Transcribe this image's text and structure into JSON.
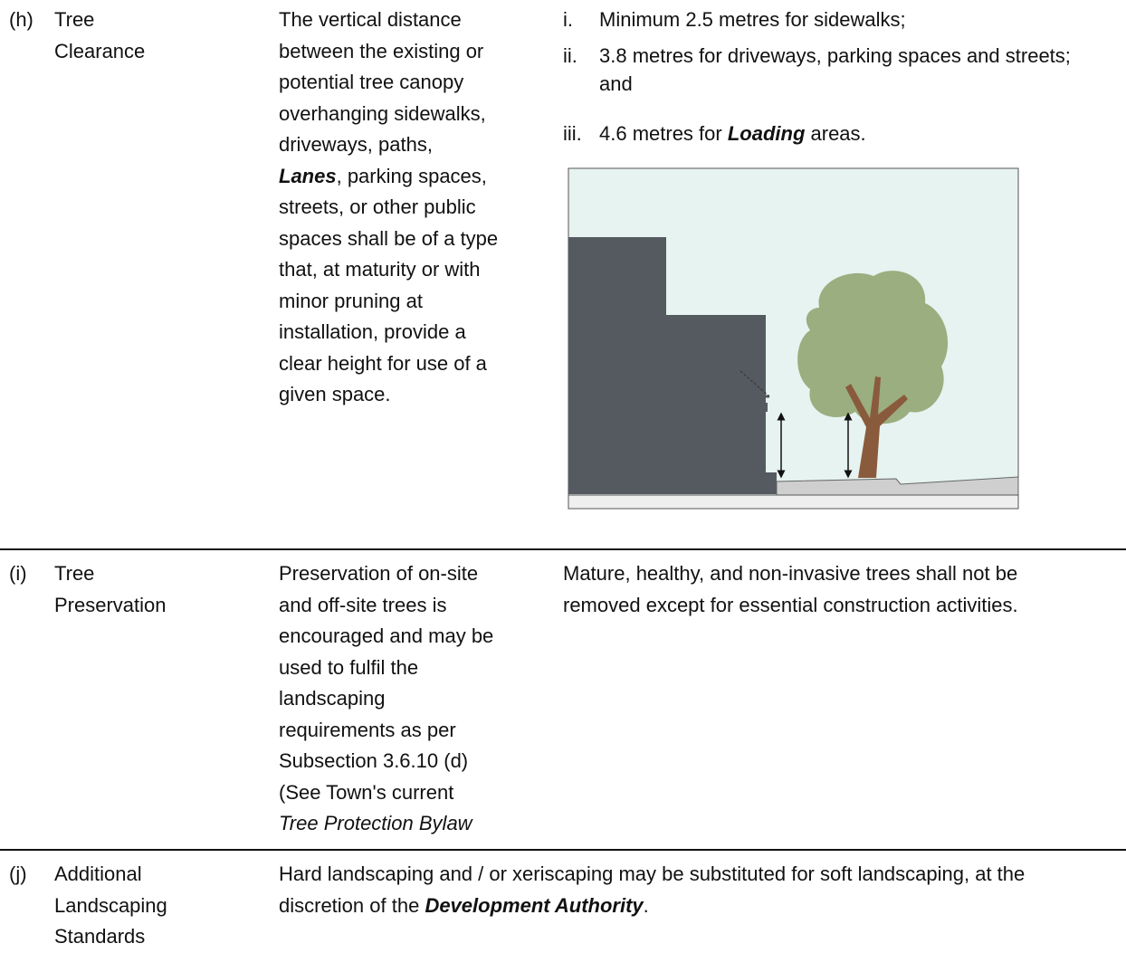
{
  "rows": [
    {
      "label": "(h)",
      "title": [
        "Tree",
        "Clearance"
      ],
      "description": [
        "The vertical distance",
        "between the existing or",
        "potential tree canopy",
        "overhanging sidewalks,",
        "driveways, paths,",
        [
          "Lanes",
          ", parking spaces,"
        ],
        "streets, or other public",
        "spaces shall be of a type",
        "that, at maturity or with",
        "minor pruning at",
        "installation, provide a",
        "clear height for use of a",
        "given space."
      ],
      "requirements": [
        {
          "marker": "i.",
          "text": [
            "Minimum 2.5 metres for sidewalks;"
          ]
        },
        {
          "marker": "ii.",
          "text": [
            "3.8 metres for driveways, parking spaces and streets;",
            "and"
          ]
        },
        {
          "marker": "iii.",
          "text": [
            "4.6 metres for ",
            "Loading",
            " areas."
          ]
        }
      ]
    },
    {
      "label": "(i)",
      "title": [
        "Tree",
        "Preservation"
      ],
      "description": [
        "Preservation of on-site",
        "and off-site trees is",
        "encouraged and may be",
        "used to fulfil the",
        "landscaping",
        "requirements as per",
        "Subsection 3.6.10 (d)",
        "(See Town's current",
        "Tree Protection Bylaw"
      ],
      "requirements": [
        "Mature, healthy, and non-invasive trees shall not be",
        "removed except for essential construction activities."
      ]
    },
    {
      "label": "(j)",
      "title": [
        "Additional",
        "Landscaping",
        "Standards"
      ],
      "description": [
        [
          "Hard landscaping and / or xeriscaping may be substituted for soft landscaping, at the"
        ],
        [
          "discretion of the ",
          "Development Authority",
          "."
        ]
      ]
    }
  ]
}
